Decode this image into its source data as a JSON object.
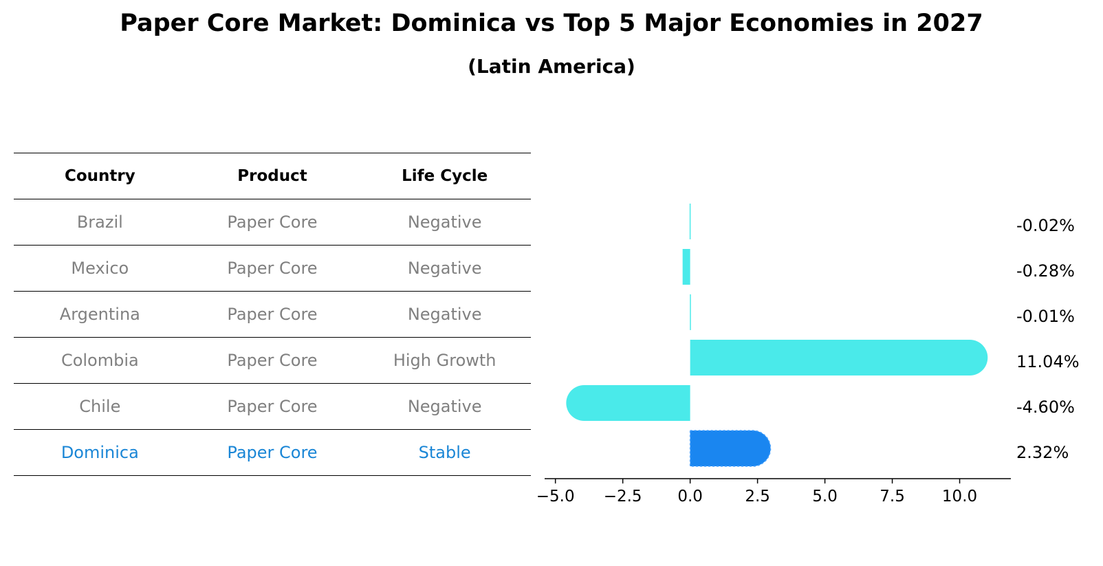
{
  "chart_data": {
    "type": "bar",
    "orientation": "horizontal",
    "title": "Paper Core Market: Dominica vs Top 5 Major Economies in 2027",
    "subtitle": "(Latin America)",
    "table": {
      "headers": [
        "Country",
        "Product",
        "Life Cycle"
      ],
      "rows": [
        [
          "Brazil",
          "Paper Core",
          "Negative"
        ],
        [
          "Mexico",
          "Paper Core",
          "Negative"
        ],
        [
          "Argentina",
          "Paper Core",
          "Negative"
        ],
        [
          "Colombia",
          "Paper Core",
          "High Growth"
        ],
        [
          "Chile",
          "Paper Core",
          "Negative"
        ],
        [
          "Dominica",
          "Paper Core",
          "Stable"
        ]
      ],
      "highlight_row": 5
    },
    "categories": [
      "Brazil",
      "Mexico",
      "Argentina",
      "Colombia",
      "Chile",
      "Dominica"
    ],
    "values": [
      -0.02,
      -0.28,
      -0.01,
      11.04,
      -4.6,
      2.32
    ],
    "value_labels": [
      "-0.02%",
      "-0.28%",
      "-0.01%",
      "11.04%",
      "-4.60%",
      "2.32%"
    ],
    "xlim": [
      -5.4,
      11.9
    ],
    "xticks": [
      -5.0,
      -2.5,
      0.0,
      2.5,
      5.0,
      7.5,
      10.0
    ],
    "xtick_labels": [
      "−5.0",
      "−2.5",
      "0.0",
      "2.5",
      "5.0",
      "7.5",
      "10.0"
    ],
    "colors": {
      "bar": "#4aeaea",
      "highlight": "#1a86f0",
      "highlight_text": "#1a86d6"
    }
  }
}
